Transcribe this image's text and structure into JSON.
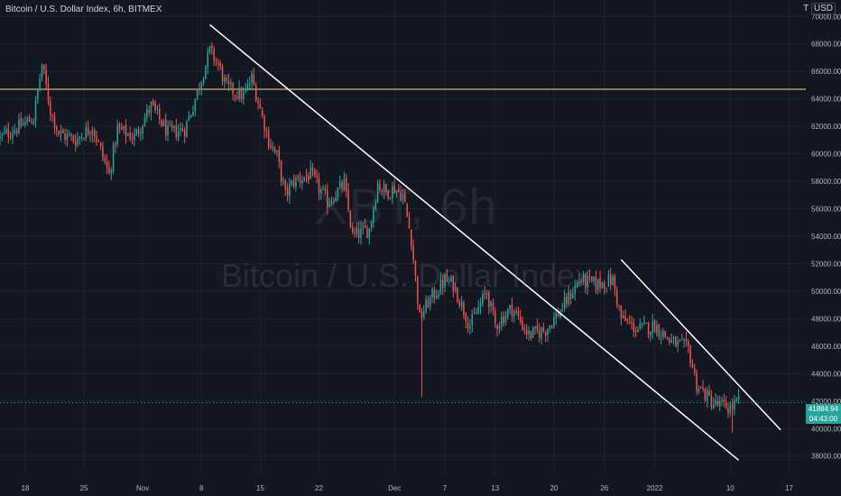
{
  "header": {
    "title": "Bitcoin / U.S. Dollar Index, 6h, BITMEX"
  },
  "corner": {
    "scale_label": "T",
    "currency": "USD"
  },
  "watermark": {
    "symbol": "XBT, 6h",
    "name": "Bitcoin / U.S. Dollar Index"
  },
  "last_price": {
    "value": "41884.94",
    "countdown": "04:43:00"
  },
  "colors": {
    "background": "#131722",
    "grid": "#1f2331",
    "up": "#26a69a",
    "down": "#ef5350",
    "horizontal_line": "#f7e26b",
    "trendline": "#ffffff",
    "axis_text": "#b2b5be"
  },
  "chart_data": {
    "type": "candlestick",
    "interval": "6h",
    "xlabel": "",
    "ylabel": "",
    "x_range": [
      "2021-10-15",
      "2022-01-19"
    ],
    "ylim": [
      36800,
      71200
    ],
    "grid": true,
    "y_ticks": [
      {
        "value": 38000,
        "label": "38000.00"
      },
      {
        "value": 40000,
        "label": "40000.00"
      },
      {
        "value": 42000,
        "label": "42000.00"
      },
      {
        "value": 44000,
        "label": "44000.00"
      },
      {
        "value": 46000,
        "label": "46000.00"
      },
      {
        "value": 48000,
        "label": "48000.00"
      },
      {
        "value": 50000,
        "label": "50000.00"
      },
      {
        "value": 52000,
        "label": "52000.00"
      },
      {
        "value": 54000,
        "label": "54000.00"
      },
      {
        "value": 56000,
        "label": "56000.00"
      },
      {
        "value": 58000,
        "label": "58000.00"
      },
      {
        "value": 60000,
        "label": "60000.00"
      },
      {
        "value": 62000,
        "label": "62000.00"
      },
      {
        "value": 64000,
        "label": "64000.00"
      },
      {
        "value": 66000,
        "label": "66000.00"
      },
      {
        "value": 68000,
        "label": "68000.00"
      },
      {
        "value": 70000,
        "label": "70000.00"
      }
    ],
    "x_ticks": [
      {
        "date": "2021-10-18",
        "label": "18"
      },
      {
        "date": "2021-10-25",
        "label": "25"
      },
      {
        "date": "2021-11-01",
        "label": "Nov"
      },
      {
        "date": "2021-11-08",
        "label": "8"
      },
      {
        "date": "2021-11-15",
        "label": "15"
      },
      {
        "date": "2021-11-22",
        "label": "22"
      },
      {
        "date": "2021-12-01",
        "label": "Dec"
      },
      {
        "date": "2021-12-07",
        "label": "7"
      },
      {
        "date": "2021-12-13",
        "label": "13"
      },
      {
        "date": "2021-12-20",
        "label": "20"
      },
      {
        "date": "2021-12-26",
        "label": "26"
      },
      {
        "date": "2022-01-01",
        "label": "2022"
      },
      {
        "date": "2022-01-10",
        "label": "10"
      },
      {
        "date": "2022-01-17",
        "label": "17"
      }
    ],
    "close_path": [
      [
        "2021-10-15",
        61200
      ],
      [
        "2021-10-19",
        62600
      ],
      [
        "2021-10-20",
        66500
      ],
      [
        "2021-10-21",
        63200
      ],
      [
        "2021-10-22",
        61500
      ],
      [
        "2021-10-24",
        61000
      ],
      [
        "2021-10-26",
        62000
      ],
      [
        "2021-10-28",
        58500
      ],
      [
        "2021-10-29",
        61800
      ],
      [
        "2021-10-31",
        61200
      ],
      [
        "2021-11-02",
        63500
      ],
      [
        "2021-11-04",
        61500
      ],
      [
        "2021-11-06",
        61800
      ],
      [
        "2021-11-07",
        63500
      ],
      [
        "2021-11-09",
        67500
      ],
      [
        "2021-11-10",
        66500
      ],
      [
        "2021-11-11",
        64800
      ],
      [
        "2021-11-13",
        64200
      ],
      [
        "2021-11-14",
        65500
      ],
      [
        "2021-11-16",
        61000
      ],
      [
        "2021-11-17",
        59800
      ],
      [
        "2021-11-18",
        57000
      ],
      [
        "2021-11-19",
        58000
      ],
      [
        "2021-11-21",
        58500
      ],
      [
        "2021-11-23",
        56500
      ],
      [
        "2021-11-25",
        57800
      ],
      [
        "2021-11-26",
        54000
      ],
      [
        "2021-11-28",
        54500
      ],
      [
        "2021-11-29",
        57800
      ],
      [
        "2021-11-30",
        57200
      ],
      [
        "2021-12-01",
        57500
      ],
      [
        "2021-12-02",
        57000
      ],
      [
        "2021-12-03",
        53800
      ],
      [
        "2021-12-04",
        48000
      ],
      [
        "2021-12-05",
        49200
      ],
      [
        "2021-12-07",
        50800
      ],
      [
        "2021-12-08",
        50500
      ],
      [
        "2021-12-10",
        47500
      ],
      [
        "2021-12-12",
        50000
      ],
      [
        "2021-12-13",
        47500
      ],
      [
        "2021-12-15",
        48800
      ],
      [
        "2021-12-17",
        46800
      ],
      [
        "2021-12-19",
        47200
      ],
      [
        "2021-12-21",
        48800
      ],
      [
        "2021-12-23",
        50800
      ],
      [
        "2021-12-25",
        50500
      ],
      [
        "2021-12-27",
        50800
      ],
      [
        "2021-12-28",
        48000
      ],
      [
        "2021-12-30",
        47200
      ],
      [
        "2022-01-01",
        47500
      ],
      [
        "2022-01-03",
        46300
      ],
      [
        "2022-01-05",
        45800
      ],
      [
        "2022-01-06",
        43200
      ],
      [
        "2022-01-08",
        41800
      ],
      [
        "2022-01-10",
        41500
      ],
      [
        "2022-01-11",
        41900
      ]
    ],
    "candle_noise": 700,
    "spikes": [
      {
        "date": "2021-12-04",
        "low": 42300
      },
      {
        "date": "2022-01-10",
        "low": 39700
      }
    ],
    "horizontal_line": {
      "value": 64700
    },
    "trendlines": [
      {
        "from": [
          "2021-11-09",
          69400
        ],
        "to": [
          "2022-01-11",
          37700
        ]
      },
      {
        "from": [
          "2021-12-28",
          52300
        ],
        "to": [
          "2022-01-16",
          39900
        ]
      }
    ],
    "last_price_line": 41884.94
  }
}
